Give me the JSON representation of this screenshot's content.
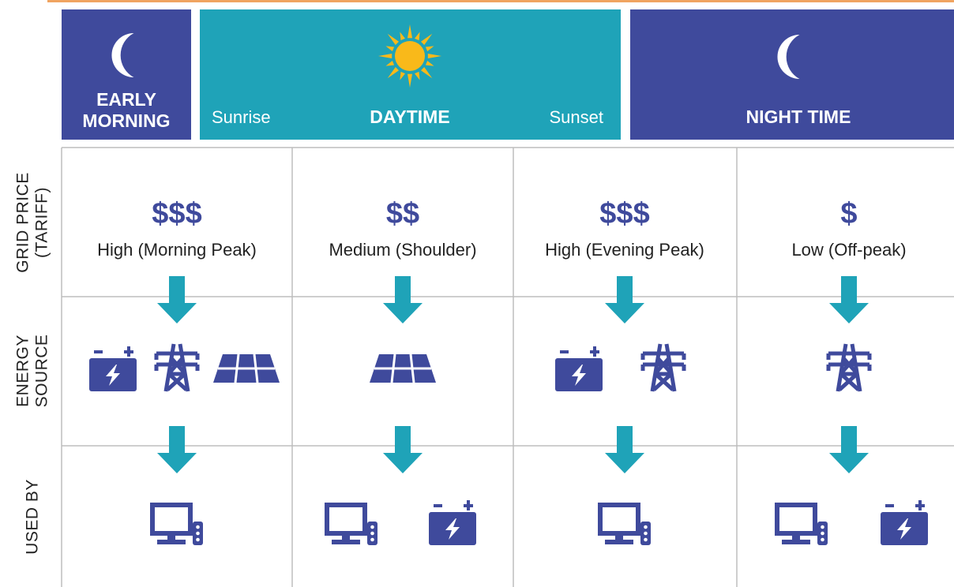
{
  "header": {
    "early_morning": {
      "lines": [
        "EARLY",
        "MORNING"
      ]
    },
    "daytime": {
      "start": "Sunrise",
      "label": "DAYTIME",
      "end": "Sunset"
    },
    "night_time": {
      "label": "NIGHT TIME"
    }
  },
  "rows": [
    {
      "lines": [
        "GRID PRICE",
        "(TARIFF)"
      ]
    },
    {
      "lines": [
        "ENERGY",
        "SOURCE"
      ]
    },
    {
      "lines": [
        "USED BY"
      ]
    }
  ],
  "columns": [
    {
      "price_symbol": "$$$",
      "price_label": "High (Morning Peak)"
    },
    {
      "price_symbol": "$$",
      "price_label": "Medium (Shoulder)"
    },
    {
      "price_symbol": "$$$",
      "price_label": "High (Evening Peak)"
    },
    {
      "price_symbol": "$",
      "price_label": "Low (Off-peak)"
    }
  ]
}
